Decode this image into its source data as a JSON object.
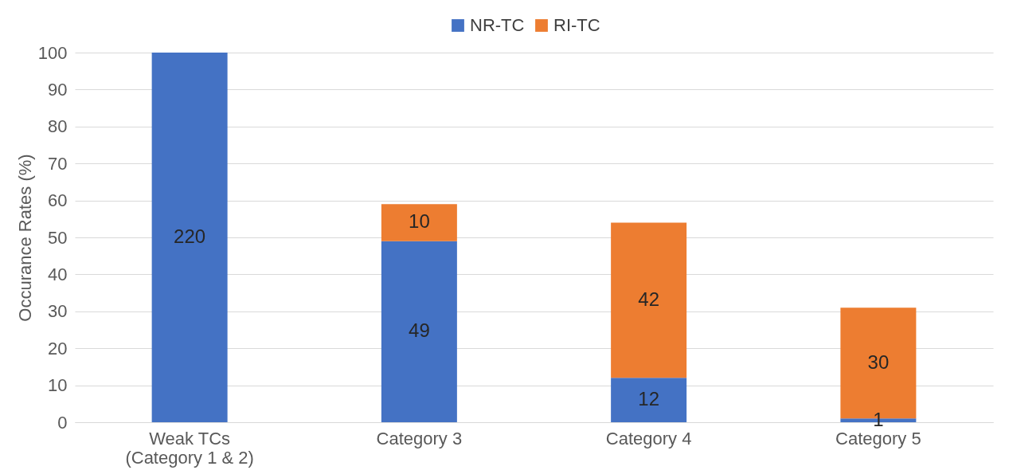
{
  "chart_data": {
    "type": "bar",
    "stacked": true,
    "ylabel": "Occurance Rates (%)",
    "categories": [
      "Weak TCs\n(Category 1 & 2)",
      "Category 3",
      "Category 4",
      "Category 5"
    ],
    "series": [
      {
        "name": "NR-TC",
        "color": "#4472c4",
        "values": [
          100,
          49,
          12,
          1
        ],
        "value_labels": [
          null,
          "49",
          "12",
          "1"
        ]
      },
      {
        "name": "RI-TC",
        "color": "#ed7d31",
        "values": [
          0,
          10,
          42,
          30
        ],
        "value_labels": [
          null,
          "10",
          "42",
          "30"
        ]
      }
    ],
    "ylim": [
      0,
      100
    ],
    "yticks": [
      0,
      10,
      20,
      30,
      40,
      50,
      60,
      70,
      80,
      90,
      100
    ],
    "grid": "y",
    "legend": "top",
    "annotations": [
      "220"
    ]
  }
}
